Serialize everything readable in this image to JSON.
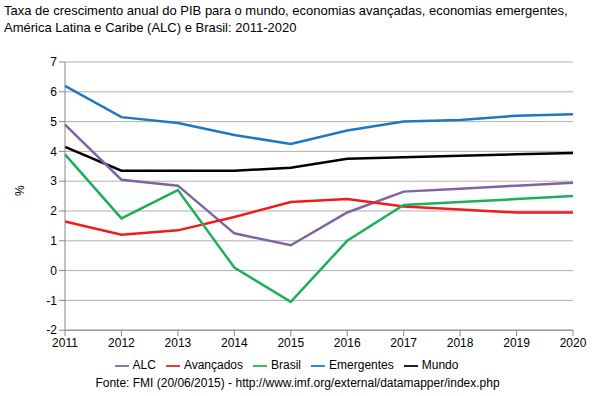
{
  "chart_data": {
    "type": "line",
    "title": "Taxa de crescimento anual do PIB para o mundo, economias avançadas, economias emergentes, América Latina e Caribe (ALC) e Brasil: 2011-2020",
    "y_label": "%",
    "source": "Fonte: FMI (20/06/2015) - http://www.imf.org/external/datamapper/index.php",
    "categories": [
      "2011",
      "2012",
      "2013",
      "2014",
      "2015",
      "2016",
      "2017",
      "2018",
      "2019",
      "2020"
    ],
    "series": [
      {
        "name": "Emergentes",
        "color": "#1f78c0",
        "values": [
          6.2,
          5.15,
          4.95,
          4.55,
          4.25,
          4.7,
          5.0,
          5.05,
          5.2,
          5.25
        ]
      },
      {
        "name": "Mundo",
        "color": "#000000",
        "values": [
          4.15,
          3.35,
          3.35,
          3.35,
          3.45,
          3.75,
          3.8,
          3.85,
          3.9,
          3.95
        ]
      },
      {
        "name": "ALC",
        "color": "#8064a2",
        "values": [
          4.9,
          3.05,
          2.85,
          1.25,
          0.85,
          1.95,
          2.65,
          2.75,
          2.85,
          2.95
        ]
      },
      {
        "name": "Avançados",
        "color": "#ee1c1c",
        "values": [
          1.65,
          1.2,
          1.35,
          1.8,
          2.3,
          2.4,
          2.15,
          2.05,
          1.95,
          1.95
        ]
      },
      {
        "name": "Brasil",
        "color": "#1daf5a",
        "values": [
          3.9,
          1.75,
          2.7,
          0.1,
          -1.05,
          1.0,
          2.2,
          2.3,
          2.4,
          2.5
        ]
      }
    ],
    "ylim": [
      -2,
      7
    ],
    "yticks": [
      -2,
      -1,
      0,
      1,
      2,
      3,
      4,
      5,
      6,
      7
    ],
    "grid": true,
    "legend": "bottom"
  }
}
